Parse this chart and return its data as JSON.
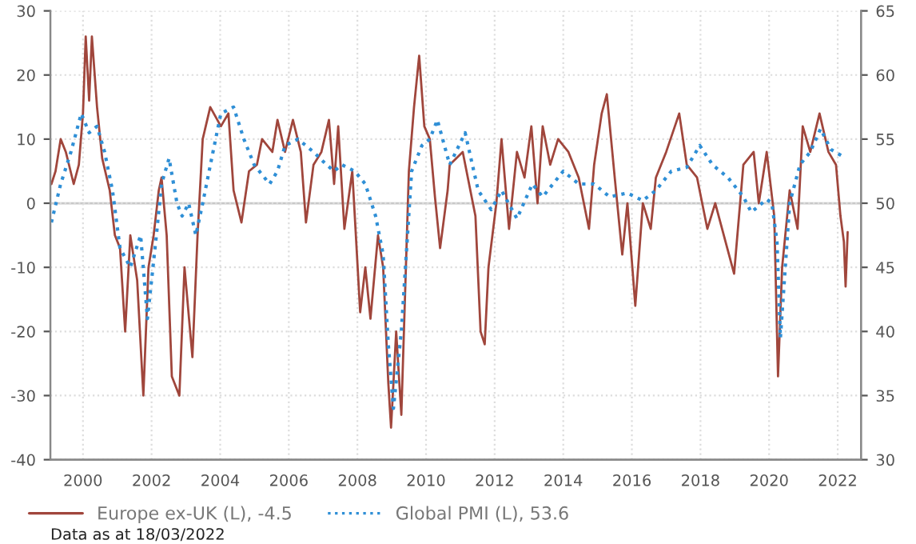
{
  "chart_data": {
    "type": "line",
    "xlim": [
      1999.05,
      2022.68
    ],
    "xticks": [
      2000,
      2002,
      2004,
      2006,
      2008,
      2010,
      2012,
      2014,
      2016,
      2018,
      2020,
      2022
    ],
    "ylim": [
      -40,
      30
    ],
    "yticks": [
      -40,
      -30,
      -20,
      -10,
      0,
      10,
      20,
      30
    ],
    "y2lim": [
      30,
      65
    ],
    "y2ticks": [
      30,
      35,
      40,
      45,
      50,
      55,
      60,
      65
    ],
    "grid": true,
    "legend": "bottom",
    "ref_lines": [
      {
        "axis": "y",
        "value": 0,
        "color": "#c8c8c8"
      }
    ],
    "annotations": [
      "Data as at 18/03/2022"
    ],
    "series": [
      {
        "name": "Europe ex-UK (L), -4.5",
        "color": "#a0463c",
        "line_style": "solid",
        "x": [
          1999.08,
          1999.2,
          1999.35,
          1999.5,
          1999.73,
          1999.88,
          2000.0,
          2000.08,
          2000.18,
          2000.26,
          2000.41,
          2000.56,
          2000.78,
          2000.93,
          2001.08,
          2001.23,
          2001.38,
          2001.58,
          2001.76,
          2001.91,
          2002.06,
          2002.21,
          2002.29,
          2002.44,
          2002.59,
          2002.81,
          2002.96,
          2003.19,
          2003.34,
          2003.49,
          2003.71,
          2004.02,
          2004.24,
          2004.39,
          2004.62,
          2004.84,
          2005.07,
          2005.22,
          2005.52,
          2005.67,
          2005.89,
          2006.12,
          2006.35,
          2006.5,
          2006.72,
          2006.95,
          2007.17,
          2007.32,
          2007.44,
          2007.62,
          2007.85,
          2008.08,
          2008.23,
          2008.38,
          2008.6,
          2008.75,
          2008.9,
          2008.98,
          2009.13,
          2009.28,
          2009.5,
          2009.65,
          2009.8,
          2009.95,
          2010.11,
          2010.26,
          2010.41,
          2010.63,
          2010.69,
          2011.07,
          2011.44,
          2011.59,
          2011.71,
          2011.82,
          2012.05,
          2012.2,
          2012.42,
          2012.65,
          2012.87,
          2013.07,
          2013.25,
          2013.4,
          2013.62,
          2013.85,
          2014.15,
          2014.45,
          2014.75,
          2014.9,
          2015.12,
          2015.27,
          2015.5,
          2015.72,
          2015.87,
          2016.1,
          2016.32,
          2016.55,
          2016.7,
          2017.0,
          2017.38,
          2017.6,
          2017.9,
          2018.2,
          2018.43,
          2018.73,
          2018.98,
          2019.25,
          2019.55,
          2019.7,
          2019.93,
          2020.15,
          2020.26,
          2020.38,
          2020.6,
          2020.83,
          2020.98,
          2021.2,
          2021.47,
          2021.73,
          2021.95,
          2022.08,
          2022.18,
          2022.23,
          2022.29
        ],
        "values": [
          3,
          5,
          10,
          8,
          3,
          6,
          14,
          26,
          16,
          26,
          15,
          7,
          2,
          -5,
          -7,
          -20,
          -5,
          -12,
          -30,
          -10,
          -5,
          2,
          4,
          -5,
          -27,
          -30,
          -10,
          -24,
          -5,
          10,
          15,
          12,
          14,
          2,
          -3,
          5,
          6,
          10,
          8,
          13,
          8,
          13,
          8,
          -3,
          6,
          8,
          13,
          3,
          12,
          -4,
          5,
          -17,
          -10,
          -18,
          -5,
          -10,
          -28,
          -35,
          -20,
          -33,
          5,
          15,
          23,
          12,
          10,
          1,
          -7,
          2,
          6,
          8,
          -2,
          -20,
          -22,
          -10,
          0,
          10,
          -4,
          8,
          4,
          12,
          0,
          12,
          6,
          10,
          8,
          4,
          -4,
          6,
          14,
          17,
          4,
          -8,
          0,
          -16,
          0,
          -4,
          4,
          8,
          14,
          6,
          4,
          -4,
          0,
          -6,
          -11,
          6,
          8,
          0,
          8,
          -2,
          -27,
          -10,
          2,
          -4,
          12,
          8,
          14,
          8,
          6,
          -2,
          -6,
          -13,
          -4.5
        ]
      },
      {
        "name": "Global PMI (L), 53.6",
        "color": "#2f8fd6",
        "line_style": "dotted",
        "axis": "y2",
        "x": [
          1999.08,
          1999.35,
          1999.65,
          1999.95,
          2000.18,
          2000.41,
          2000.63,
          2000.86,
          2001.08,
          2001.38,
          2001.68,
          2001.88,
          2002.14,
          2002.29,
          2002.51,
          2002.74,
          2002.89,
          2003.08,
          2003.29,
          2003.49,
          2003.79,
          2004.02,
          2004.39,
          2004.69,
          2004.99,
          2005.44,
          2005.67,
          2005.89,
          2006.27,
          2006.72,
          2007.1,
          2007.32,
          2007.55,
          2007.92,
          2008.23,
          2008.53,
          2008.75,
          2008.9,
          2009.05,
          2009.28,
          2009.58,
          2009.88,
          2010.11,
          2010.33,
          2010.69,
          2011.14,
          2011.52,
          2011.9,
          2012.2,
          2012.65,
          2013.1,
          2013.4,
          2014.0,
          2014.45,
          2014.9,
          2015.35,
          2015.87,
          2016.32,
          2016.7,
          2017.15,
          2017.6,
          2017.98,
          2018.35,
          2018.8,
          2019.25,
          2019.48,
          2019.93,
          2020.08,
          2020.23,
          2020.33,
          2020.6,
          2020.9,
          2021.2,
          2021.5,
          2021.8,
          2022.18
        ],
        "values": [
          48.5,
          51.5,
          54,
          57,
          55.5,
          56,
          54,
          51,
          46.5,
          45,
          47.5,
          41,
          47.5,
          51.5,
          53.5,
          50,
          49,
          50,
          47.5,
          50,
          54,
          57,
          57.5,
          55,
          53,
          51.5,
          52.5,
          54.5,
          55,
          54,
          53,
          52.5,
          53,
          52.5,
          51.5,
          49,
          46,
          39,
          34,
          40,
          52.5,
          54.5,
          55,
          56.5,
          53,
          55.5,
          51,
          49.5,
          51,
          48.8,
          51.5,
          50.5,
          52.5,
          51.5,
          51.5,
          50.5,
          50.8,
          50.2,
          51,
          52.5,
          52.8,
          54.5,
          53,
          52,
          50.5,
          49.3,
          50.3,
          50,
          47,
          39.5,
          50,
          53,
          54,
          55.8,
          54.2,
          53.6
        ]
      }
    ]
  }
}
